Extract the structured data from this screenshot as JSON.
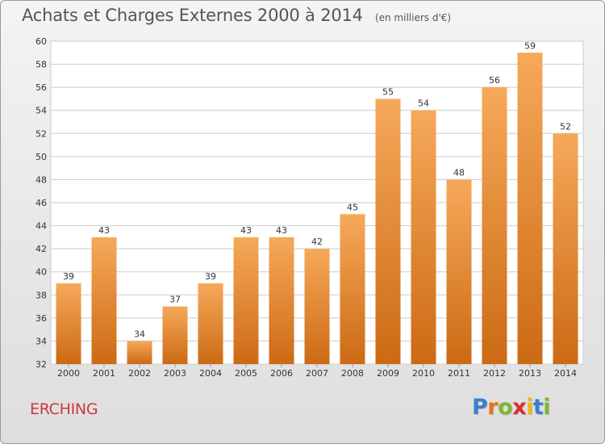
{
  "header": {
    "title": "Achats et Charges Externes 2000 à 2014",
    "subtitle": "(en milliers d'€)"
  },
  "footer": {
    "commune": "ERCHING",
    "logo_text": "Proxiti",
    "logo_colors": [
      "#3a7fd0",
      "#e8721b",
      "#7bb833",
      "#d92d2d",
      "#e8b81b",
      "#3a7fd0",
      "#7bb833"
    ]
  },
  "colors": {
    "bar_top": "#f6a95a",
    "bar_bottom": "#cc6a14",
    "grid": "#cccccc",
    "axis_text": "#333333",
    "commune": "#c9393f"
  },
  "chart_data": {
    "type": "bar",
    "categories": [
      "2000",
      "2001",
      "2002",
      "2003",
      "2004",
      "2005",
      "2006",
      "2007",
      "2008",
      "2009",
      "2010",
      "2011",
      "2012",
      "2013",
      "2014"
    ],
    "values": [
      39,
      43,
      34,
      37,
      39,
      43,
      43,
      42,
      45,
      55,
      54,
      48,
      56,
      59,
      52
    ],
    "title": "Achats et Charges Externes 2000 à 2014",
    "subtitle": "(en milliers d'€)",
    "xlabel": "",
    "ylabel": "",
    "ylim": [
      32,
      60
    ],
    "yticks": [
      32,
      34,
      36,
      38,
      40,
      42,
      44,
      46,
      48,
      50,
      52,
      54,
      56,
      58,
      60
    ],
    "grid": true,
    "data_labels": true
  }
}
